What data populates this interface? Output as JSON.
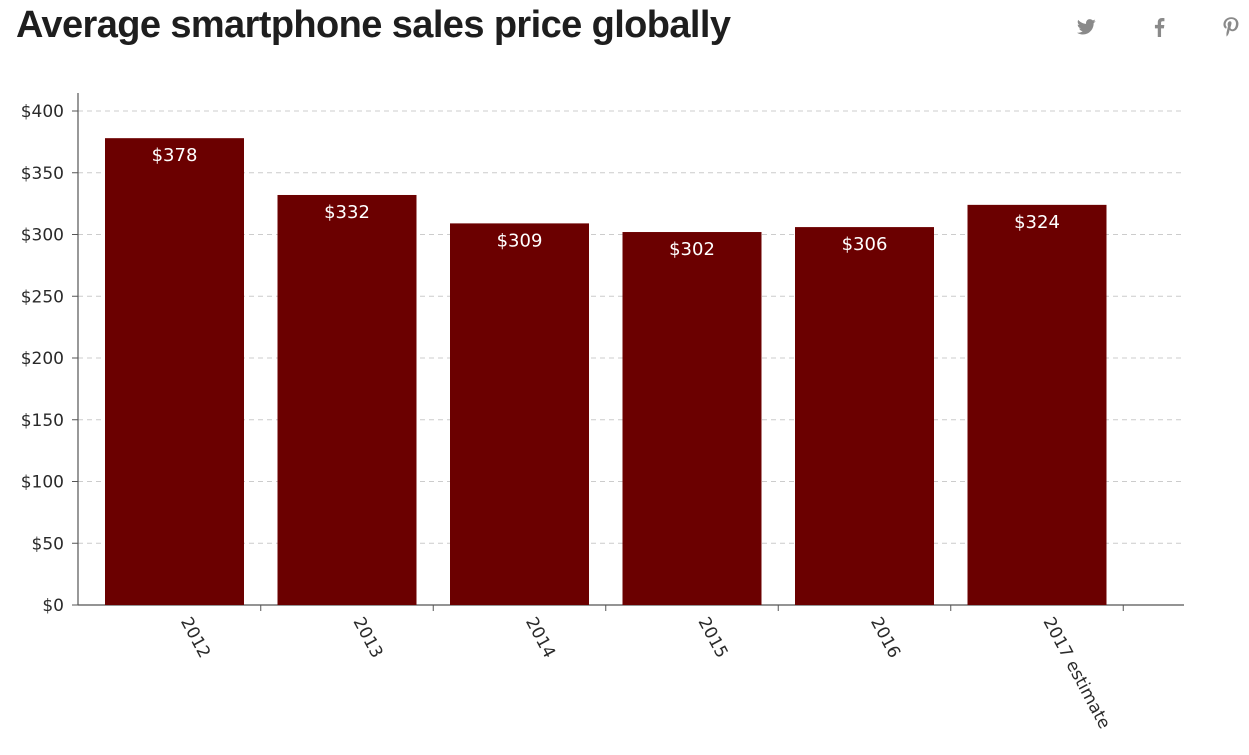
{
  "page": {
    "title": "Average smartphone sales price globally"
  },
  "share": {
    "icons": [
      "twitter-icon",
      "facebook-icon",
      "pinterest-icon"
    ],
    "icon_color": "#8a8a8a"
  },
  "colors": {
    "bar": "#6b0000",
    "grid": "#cccccc",
    "axis": "#555555"
  },
  "chart_data": {
    "type": "bar",
    "title": "Average smartphone sales price globally",
    "categories": [
      "2012",
      "2013",
      "2014",
      "2015",
      "2016",
      "2017 estimate"
    ],
    "values": [
      378,
      332,
      309,
      302,
      306,
      324
    ],
    "value_labels": [
      "$378",
      "$332",
      "$309",
      "$302",
      "$306",
      "$324"
    ],
    "y_ticks": [
      0,
      50,
      100,
      150,
      200,
      250,
      300,
      350,
      400
    ],
    "y_tick_labels": [
      "$0",
      "$50",
      "$100",
      "$150",
      "$200",
      "$250",
      "$300",
      "$350",
      "$400"
    ],
    "ylim": [
      0,
      400
    ],
    "xlabel": "",
    "ylabel": "",
    "grid": true,
    "legend": "none"
  }
}
